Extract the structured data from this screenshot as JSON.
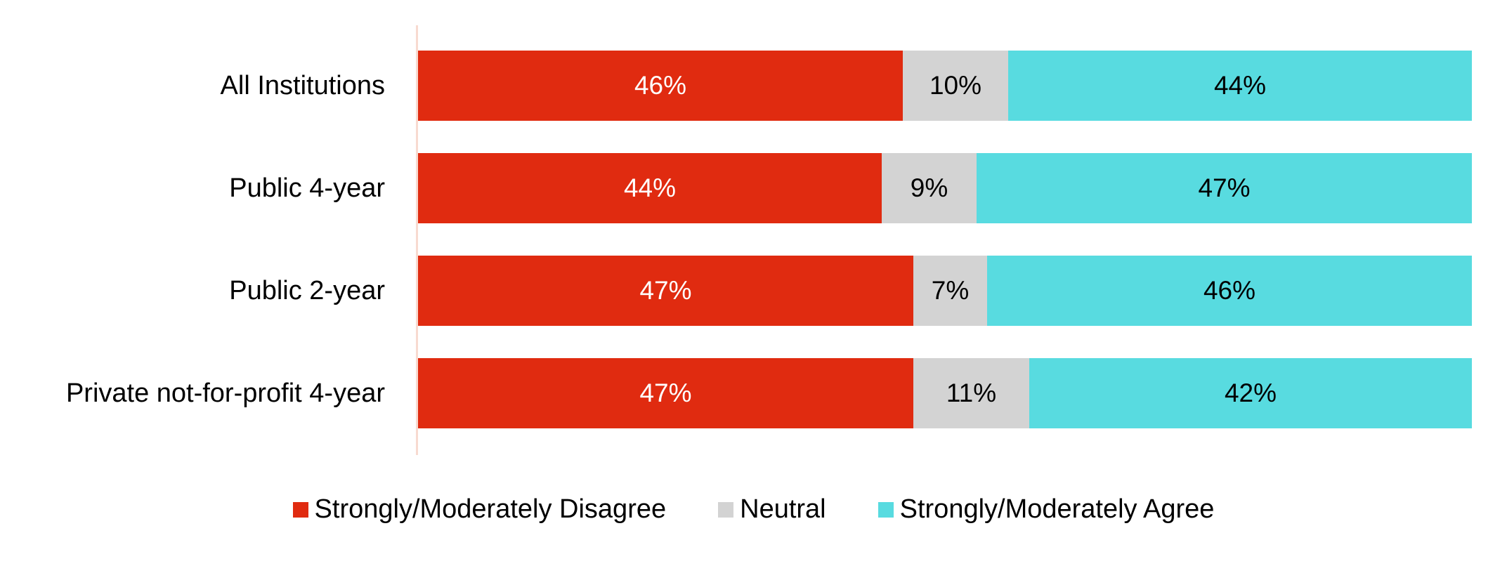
{
  "chart_data": {
    "type": "bar",
    "orientation": "horizontal",
    "stacked": true,
    "title": "",
    "categories": [
      "All Institutions",
      "Public 4-year",
      "Public 2-year",
      "Private not-for-profit 4-year"
    ],
    "series": [
      {
        "name": "Strongly/Moderately Disagree",
        "color": "#E02B10",
        "value_label_color": "#FFFFFF",
        "values": [
          46,
          44,
          47,
          47
        ]
      },
      {
        "name": "Neutral",
        "color": "#D3D3D3",
        "value_label_color": "#000000",
        "values": [
          10,
          9,
          7,
          11
        ]
      },
      {
        "name": "Strongly/Moderately Agree",
        "color": "#58DBE0",
        "value_label_color": "#000000",
        "values": [
          44,
          47,
          46,
          42
        ]
      }
    ],
    "value_suffix": "%",
    "xlim": [
      0,
      100
    ],
    "grid": false,
    "legend_position": "bottom",
    "axis_line_color": "#F8DAD0",
    "category_label_color": "#000000",
    "background": "#FFFFFF"
  }
}
